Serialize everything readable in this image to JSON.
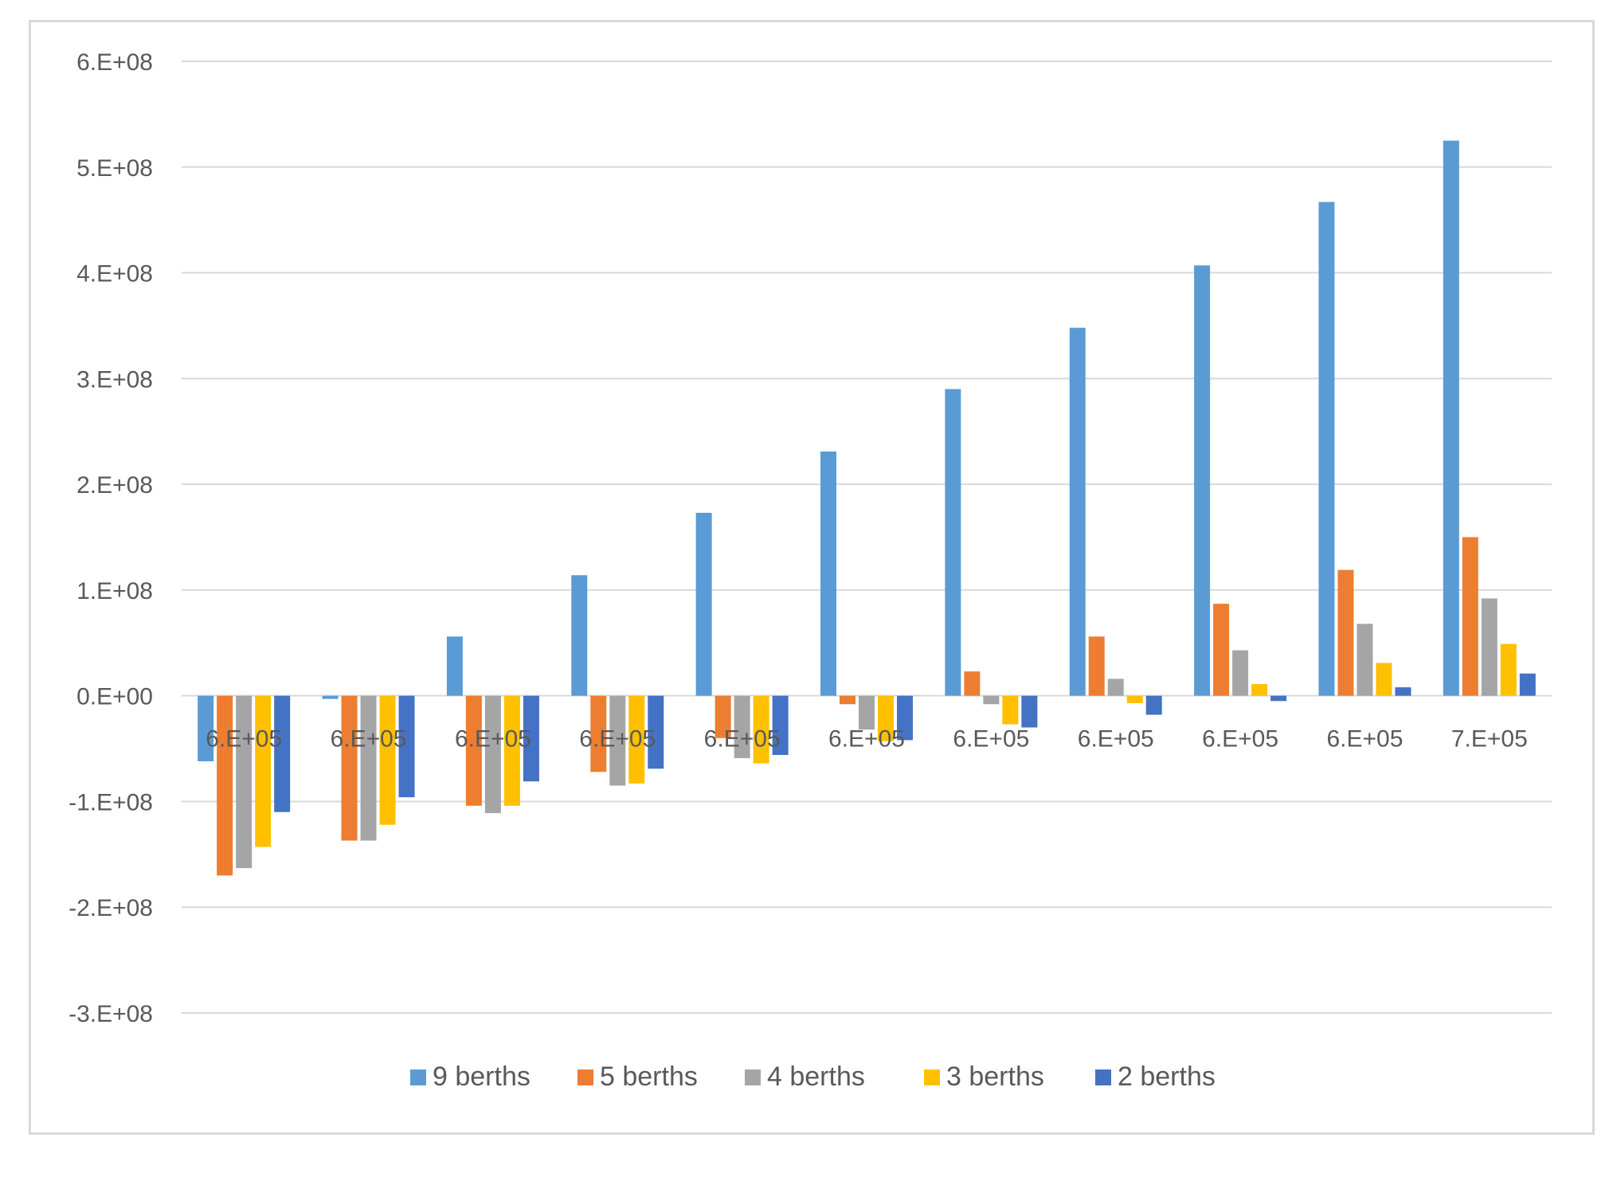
{
  "chart_data": {
    "type": "bar",
    "title": "",
    "xlabel": "",
    "ylabel": "",
    "ylim": [
      -300000000,
      600000000
    ],
    "y_ticks": [
      600000000,
      500000000,
      400000000,
      300000000,
      200000000,
      100000000,
      0,
      -100000000,
      -200000000,
      -300000000
    ],
    "y_tick_labels": [
      "6.E+08",
      "5.E+08",
      "4.E+08",
      "3.E+08",
      "2.E+08",
      "1.E+08",
      "0.E+00",
      "-1.E+08",
      "-2.E+08",
      "-3.E+08"
    ],
    "categories": [
      "6.E+05",
      "6.E+05",
      "6.E+05",
      "6.E+05",
      "6.E+05",
      "6.E+05",
      "6.E+05",
      "6.E+05",
      "6.E+05",
      "6.E+05",
      "7.E+05"
    ],
    "grid": true,
    "legend_position": "bottom",
    "series": [
      {
        "name": "9 berths",
        "color": "#5b9bd5",
        "values": [
          -62000000,
          -3000000,
          56000000,
          114000000,
          173000000,
          231000000,
          290000000,
          348000000,
          407000000,
          467000000,
          525000000
        ]
      },
      {
        "name": "5 berths",
        "color": "#ed7d31",
        "values": [
          -170000000,
          -137000000,
          -104000000,
          -72000000,
          -40000000,
          -8000000,
          23000000,
          56000000,
          87000000,
          119000000,
          150000000
        ]
      },
      {
        "name": "4 berths",
        "color": "#a5a5a5",
        "values": [
          -163000000,
          -137000000,
          -111000000,
          -85000000,
          -59000000,
          -32000000,
          -8000000,
          16000000,
          43000000,
          68000000,
          92000000
        ]
      },
      {
        "name": "3 berths",
        "color": "#ffc000",
        "values": [
          -143000000,
          -122000000,
          -104000000,
          -83000000,
          -64000000,
          -43000000,
          -27000000,
          -7000000,
          11000000,
          31000000,
          49000000
        ]
      },
      {
        "name": "2 berths",
        "color": "#4472c4",
        "values": [
          -110000000,
          -96000000,
          -81000000,
          -69000000,
          -56000000,
          -42000000,
          -30000000,
          -18000000,
          -5000000,
          8000000,
          21000000
        ]
      }
    ]
  }
}
